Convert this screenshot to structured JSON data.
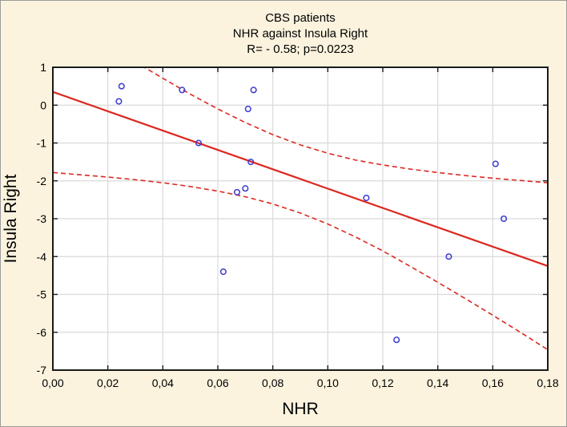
{
  "figure": {
    "background_color": "#FBF3DE",
    "border_color": "#9B9B9B"
  },
  "chart_data": {
    "type": "scatter",
    "title_lines": [
      "CBS patients",
      "NHR against Insula Right",
      "R= - 0.58; p=0.0223"
    ],
    "stats": {
      "R": -0.58,
      "p": 0.0223
    },
    "xlabel": "NHR",
    "ylabel": "Insula Right",
    "xlim": [
      0.0,
      0.18
    ],
    "ylim": [
      -7,
      1
    ],
    "grid": true,
    "legend": null,
    "x_ticks": [
      0.0,
      0.02,
      0.04,
      0.06,
      0.08,
      0.1,
      0.12,
      0.14,
      0.16,
      0.18
    ],
    "x_tick_labels": [
      "0,00",
      "0,02",
      "0,04",
      "0,06",
      "0,08",
      "0,10",
      "0,12",
      "0,14",
      "0,16",
      "0,18"
    ],
    "y_ticks": [
      1,
      0,
      -1,
      -2,
      -3,
      -4,
      -5,
      -6,
      -7
    ],
    "y_tick_labels": [
      "1",
      "0",
      "-1",
      "-2",
      "-3",
      "-4",
      "-5",
      "-6",
      "-7"
    ],
    "points": [
      [
        0.025,
        0.5
      ],
      [
        0.024,
        0.1
      ],
      [
        0.047,
        0.4
      ],
      [
        0.073,
        0.4
      ],
      [
        0.071,
        -0.1
      ],
      [
        0.053,
        -1.0
      ],
      [
        0.072,
        -1.5
      ],
      [
        0.067,
        -2.3
      ],
      [
        0.07,
        -2.2
      ],
      [
        0.114,
        -2.45
      ],
      [
        0.062,
        -4.4
      ],
      [
        0.125,
        -6.2
      ],
      [
        0.144,
        -4.0
      ],
      [
        0.161,
        -1.55
      ],
      [
        0.164,
        -3.0
      ]
    ],
    "regression_line": {
      "x1": 0.0,
      "y1": 0.35,
      "x2": 0.18,
      "y2": -4.25
    },
    "conf_band": {
      "x": [
        0.0,
        0.01,
        0.02,
        0.03,
        0.04,
        0.05,
        0.06,
        0.07,
        0.08,
        0.09,
        0.1,
        0.11,
        0.12,
        0.13,
        0.14,
        0.15,
        0.16,
        0.17,
        0.18
      ],
      "upper": [
        2.48,
        2.02,
        1.58,
        1.14,
        0.71,
        0.29,
        -0.1,
        -0.46,
        -0.78,
        -1.05,
        -1.27,
        -1.45,
        -1.58,
        -1.69,
        -1.78,
        -1.86,
        -1.93,
        -1.99,
        -2.05
      ],
      "lower": [
        -1.78,
        -1.84,
        -1.9,
        -1.97,
        -2.05,
        -2.15,
        -2.27,
        -2.42,
        -2.61,
        -2.85,
        -3.14,
        -3.48,
        -3.85,
        -4.26,
        -4.68,
        -5.11,
        -5.55,
        -6.0,
        -6.46
      ]
    },
    "colors": {
      "line": "#DC2820",
      "band": "#DC2820",
      "marker": "#3B3BD0",
      "grid": "#DADADA",
      "frame": "#1A1A1A",
      "plot_bg": "#FFFFFF",
      "text": "#000000"
    }
  }
}
